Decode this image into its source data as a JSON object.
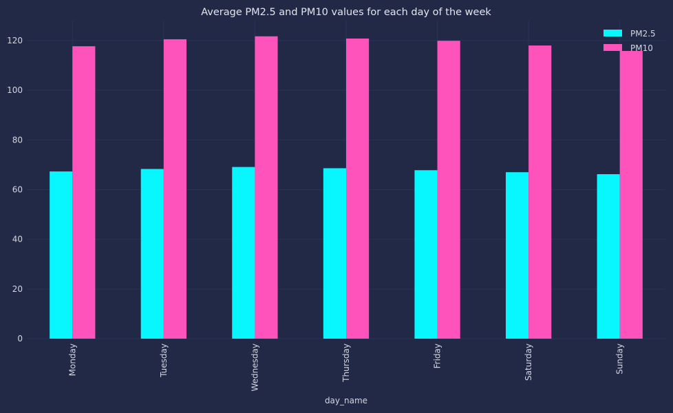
{
  "chart_data": {
    "type": "bar",
    "title": "Average PM2.5 and PM10 values for each day of the week",
    "xlabel": "day_name",
    "ylabel": "",
    "categories": [
      "Monday",
      "Tuesday",
      "Wednesday",
      "Thursday",
      "Friday",
      "Saturday",
      "Sunday"
    ],
    "series": [
      {
        "name": "PM2.5",
        "color": "#08f7fe",
        "values": [
          67.3,
          68.3,
          69.1,
          68.6,
          67.8,
          67.0,
          66.2
        ]
      },
      {
        "name": "PM10",
        "color": "#fe53bb",
        "values": [
          117.7,
          120.5,
          121.7,
          120.8,
          119.9,
          118.0,
          115.8
        ]
      }
    ],
    "ylim": [
      0,
      128
    ],
    "yticks": [
      0,
      20,
      40,
      60,
      80,
      100,
      120
    ],
    "grid": true,
    "legend_position": "top-right",
    "background": "#212946",
    "grid_color": "#2a3459"
  }
}
